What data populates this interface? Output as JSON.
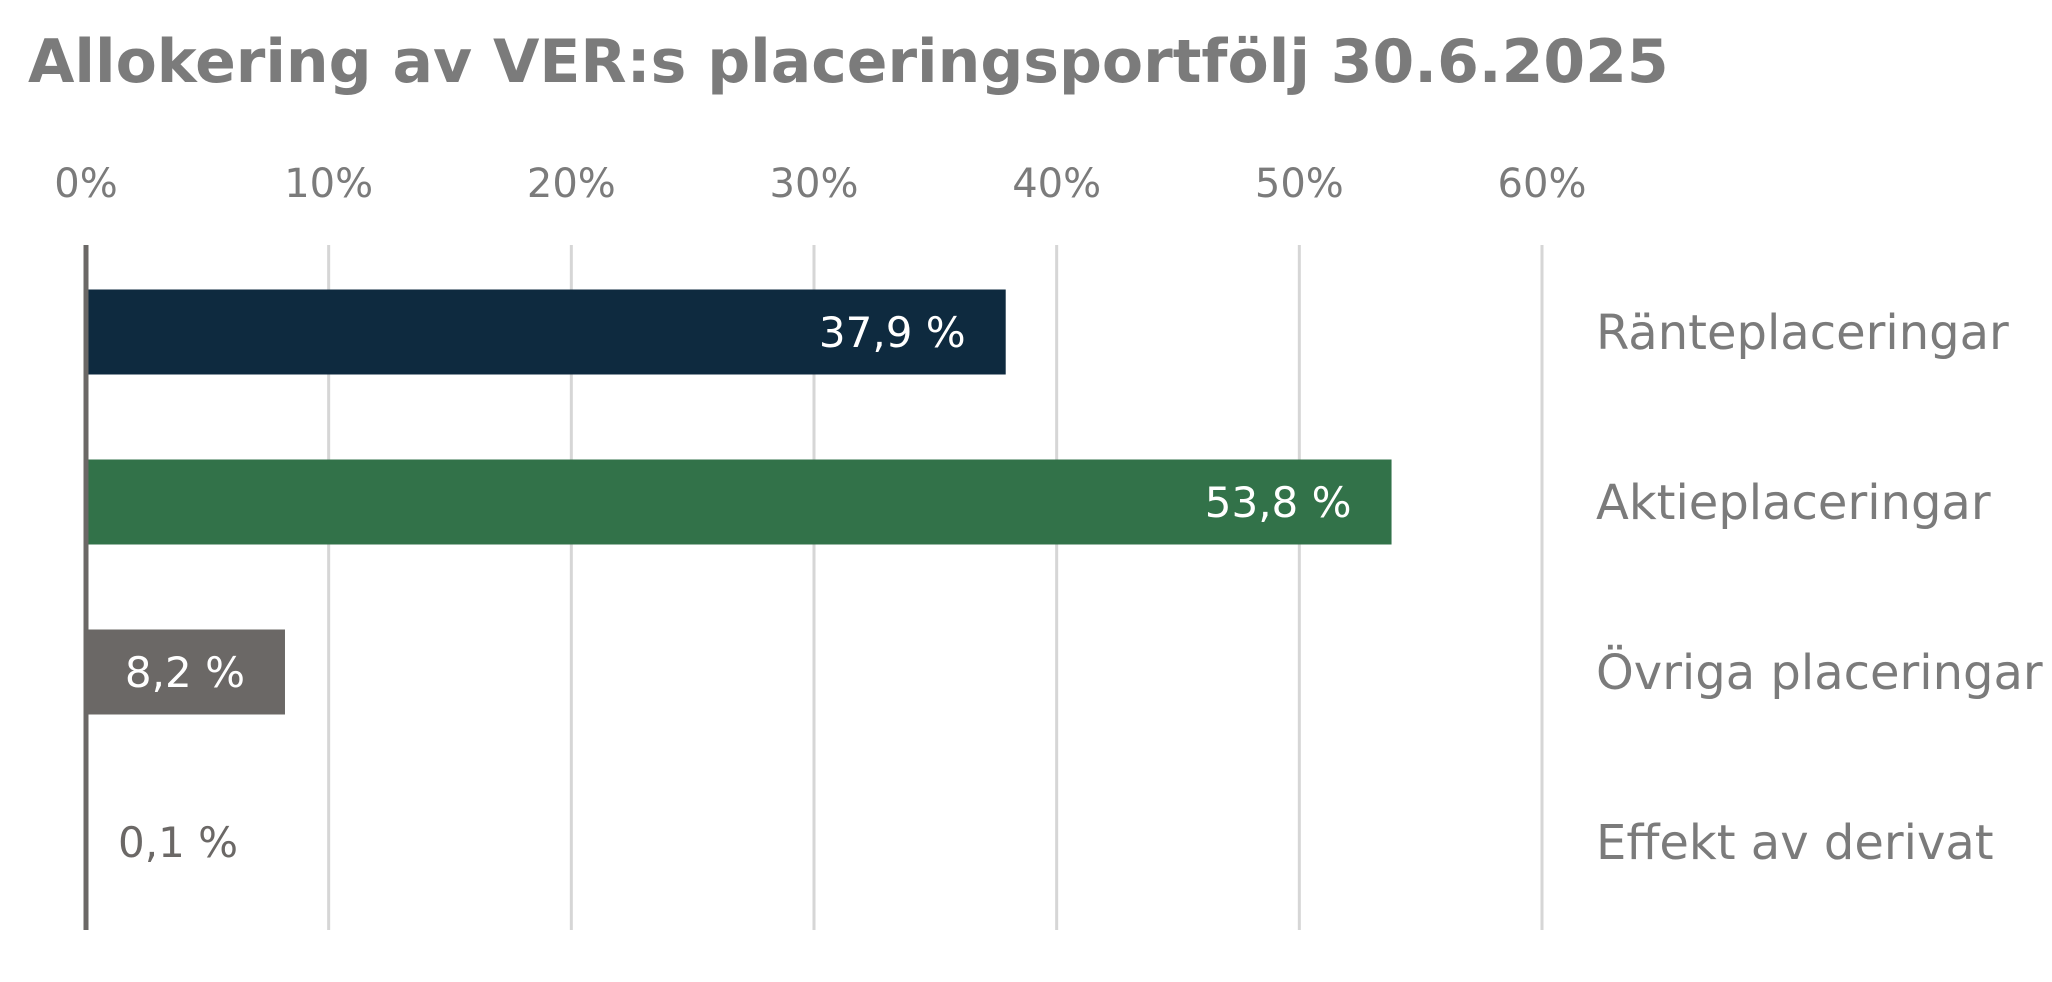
{
  "chart_data": {
    "type": "bar",
    "orientation": "horizontal",
    "title": "Allokering av VER:s placeringsportfölj 30.6.2025",
    "xlim": [
      0,
      60
    ],
    "x_ticks": [
      0,
      10,
      20,
      30,
      40,
      50,
      60
    ],
    "x_tick_labels": [
      "0%",
      "10%",
      "20%",
      "30%",
      "40%",
      "50%",
      "60%"
    ],
    "grid": true,
    "category_labels_side": "right",
    "categories": [
      "Ränteplaceringar",
      "Aktieplaceringar",
      "Övriga placeringar",
      "Effekt av derivat"
    ],
    "values": [
      37.9,
      53.8,
      8.2,
      0.1
    ],
    "data_labels": [
      "37,9 %",
      "53,8 %",
      "8,2 %",
      "0,1 %"
    ],
    "colors": [
      "#0e2a3f",
      "#327249",
      "#6b6866",
      "#6b6866"
    ]
  }
}
